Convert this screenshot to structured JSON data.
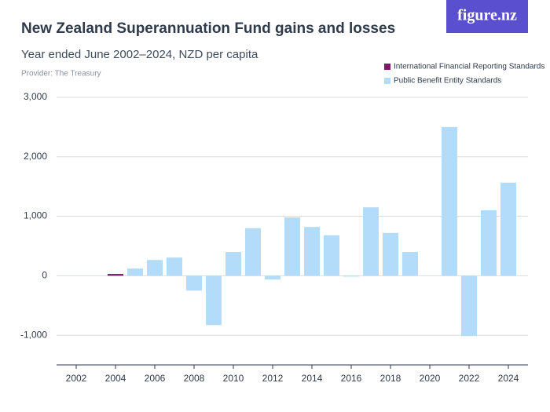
{
  "brand": "figure.nz",
  "chart_data": {
    "type": "bar",
    "title": "New Zealand Superannuation Fund gains and losses",
    "subtitle": "Year ended June 2002–2024, NZD per capita",
    "provider": "Provider: The Treasury",
    "x": [
      2002,
      2003,
      2004,
      2005,
      2006,
      2007,
      2008,
      2009,
      2010,
      2011,
      2012,
      2013,
      2014,
      2015,
      2016,
      2017,
      2018,
      2019,
      2020,
      2021,
      2022,
      2023,
      2024
    ],
    "xlim": [
      2001,
      2025
    ],
    "xticks": [
      2002,
      2004,
      2006,
      2008,
      2010,
      2012,
      2014,
      2016,
      2018,
      2020,
      2022,
      2024
    ],
    "ylim": [
      -1500,
      3000
    ],
    "yticks": [
      {
        "value": -1000,
        "label": "-1,000"
      },
      0,
      {
        "value": 1000,
        "label": "1,000"
      },
      {
        "value": 2000,
        "label": "2,000"
      },
      {
        "value": 3000,
        "label": "3,000"
      }
    ],
    "grid": true,
    "legend": "top-right",
    "series": [
      {
        "name": "International Financial Reporting Standards",
        "color": "#7b1c66",
        "values": [
          null,
          null,
          30,
          null,
          null,
          null,
          null,
          null,
          null,
          null,
          null,
          null,
          null,
          null,
          null,
          null,
          null,
          null,
          null,
          null,
          null,
          null,
          null
        ]
      },
      {
        "name": "Public Benefit Entity Standards",
        "color": "#b3dcfb",
        "values": [
          null,
          null,
          null,
          120,
          265,
          305,
          -250,
          -830,
          400,
          800,
          -65,
          980,
          820,
          680,
          -15,
          1150,
          720,
          400,
          null,
          2500,
          -1015,
          1100,
          1565
        ]
      }
    ]
  }
}
